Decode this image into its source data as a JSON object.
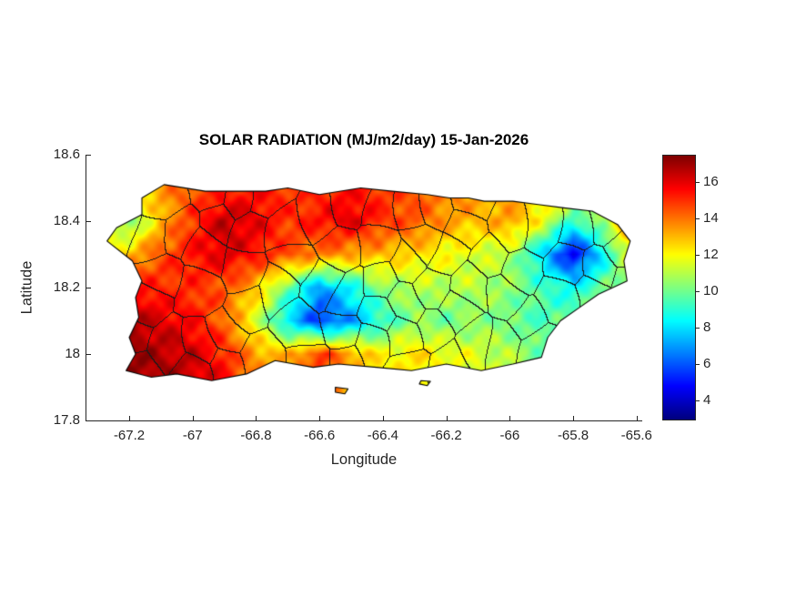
{
  "figure": {
    "title": "SOLAR RADIATION (MJ/m2/day) 15-Jan-2026",
    "xlabel": "Longitude",
    "ylabel": "Latitude"
  },
  "chart_data": {
    "type": "heatmap",
    "title": "SOLAR RADIATION (MJ/m2/day) 15-Jan-2026",
    "subtitle": "",
    "region": "Puerto Rico with municipal boundaries",
    "units": "MJ/m2/day",
    "date": "15-Jan-2026",
    "xlabel": "Longitude",
    "ylabel": "Latitude",
    "xlim": [
      -67.335,
      -65.585
    ],
    "ylim": [
      17.8,
      18.6
    ],
    "xticks": [
      -67.2,
      -67,
      -66.8,
      -66.6,
      -66.4,
      -66.2,
      -66,
      -65.8,
      -65.6
    ],
    "xtick_labels": [
      "-67.2",
      "-67",
      "-66.8",
      "-66.6",
      "-66.4",
      "-66.2",
      "-66",
      "-65.8",
      "-65.6"
    ],
    "yticks": [
      18.6,
      18.4,
      18.2,
      18,
      17.8
    ],
    "ytick_labels": [
      "18.6",
      "18.4",
      "18.2",
      "18",
      "17.8"
    ],
    "colorbar": {
      "clim": [
        3,
        17.5
      ],
      "ticks": [
        4,
        6,
        8,
        10,
        12,
        14,
        16
      ],
      "tick_labels": [
        "4",
        "6",
        "8",
        "10",
        "12",
        "14",
        "16"
      ],
      "colormap": "jet",
      "position": "right"
    },
    "colors": {
      "boundary": "#1a1a1a",
      "coastline": "#000000",
      "axis": "#262626",
      "title": "#000000",
      "background": "#ffffff"
    },
    "boundaries": {
      "visible": true,
      "approx_cells": 72
    },
    "grid": {
      "lon": [
        -67.3,
        -67.2,
        -67.1,
        -67.0,
        -66.9,
        -66.8,
        -66.7,
        -66.6,
        -66.5,
        -66.4,
        -66.3,
        -66.2,
        -66.1,
        -66.0,
        -65.9,
        -65.8,
        -65.7,
        -65.6
      ],
      "lat": [
        17.9,
        18.0,
        18.1,
        18.2,
        18.3,
        18.4,
        18.5
      ],
      "values": [
        [
          17.2,
          17.4,
          17.0,
          16.6,
          15.8,
          14.0,
          13.5,
          14.5,
          13.0,
          12.5,
          12.0,
          12.0,
          11.5,
          11.0,
          10.5,
          11.0,
          11.0,
          11.0
        ],
        [
          17.0,
          17.3,
          16.8,
          16.4,
          15.2,
          13.5,
          13.0,
          15.0,
          13.5,
          12.0,
          12.5,
          12.0,
          11.5,
          11.0,
          10.0,
          10.5,
          11.0,
          11.5
        ],
        [
          16.5,
          16.8,
          16.2,
          15.6,
          14.2,
          11.5,
          8.0,
          5.5,
          7.0,
          9.0,
          10.5,
          10.0,
          10.5,
          10.0,
          9.5,
          10.0,
          11.0,
          11.5
        ],
        [
          15.0,
          15.5,
          15.2,
          15.0,
          14.5,
          13.0,
          10.0,
          7.0,
          8.5,
          10.5,
          11.0,
          11.0,
          11.0,
          10.5,
          9.5,
          8.5,
          10.0,
          10.5
        ],
        [
          12.5,
          13.0,
          14.5,
          15.5,
          16.2,
          15.5,
          14.5,
          14.0,
          13.5,
          13.0,
          12.5,
          12.0,
          11.5,
          11.0,
          8.0,
          4.5,
          8.5,
          13.0
        ],
        [
          11.0,
          10.0,
          13.0,
          15.0,
          16.6,
          16.0,
          15.0,
          15.5,
          16.2,
          15.0,
          14.5,
          13.5,
          13.0,
          13.5,
          12.0,
          9.0,
          11.0,
          15.5
        ],
        [
          12.0,
          12.0,
          13.5,
          14.5,
          15.0,
          15.5,
          15.0,
          15.0,
          15.5,
          15.0,
          14.5,
          14.0,
          13.5,
          13.0,
          13.0,
          12.5,
          12.0,
          13.5
        ]
      ]
    },
    "coastline": [
      [
        -67.27,
        18.34
      ],
      [
        -67.19,
        18.28
      ],
      [
        -67.16,
        18.22
      ],
      [
        -67.18,
        18.17
      ],
      [
        -67.17,
        18.11
      ],
      [
        -67.2,
        18.05
      ],
      [
        -67.18,
        18.0
      ],
      [
        -67.21,
        17.95
      ],
      [
        -67.13,
        17.93
      ],
      [
        -67.05,
        17.94
      ],
      [
        -66.94,
        17.92
      ],
      [
        -66.83,
        17.94
      ],
      [
        -66.74,
        17.98
      ],
      [
        -66.62,
        17.96
      ],
      [
        -66.54,
        17.97
      ],
      [
        -66.42,
        17.96
      ],
      [
        -66.31,
        17.95
      ],
      [
        -66.2,
        17.97
      ],
      [
        -66.09,
        17.95
      ],
      [
        -65.99,
        17.97
      ],
      [
        -65.9,
        17.99
      ],
      [
        -65.88,
        18.05
      ],
      [
        -65.84,
        18.1
      ],
      [
        -65.78,
        18.14
      ],
      [
        -65.72,
        18.18
      ],
      [
        -65.63,
        18.22
      ],
      [
        -65.64,
        18.28
      ],
      [
        -65.62,
        18.34
      ],
      [
        -65.66,
        18.39
      ],
      [
        -65.74,
        18.43
      ],
      [
        -65.83,
        18.44
      ],
      [
        -65.91,
        18.45
      ],
      [
        -65.99,
        18.46
      ],
      [
        -66.08,
        18.46
      ],
      [
        -66.13,
        18.47
      ],
      [
        -66.19,
        18.47
      ],
      [
        -66.26,
        18.48
      ],
      [
        -66.37,
        18.49
      ],
      [
        -66.47,
        18.5
      ],
      [
        -66.6,
        18.48
      ],
      [
        -66.7,
        18.5
      ],
      [
        -66.77,
        18.49
      ],
      [
        -66.9,
        18.49
      ],
      [
        -66.96,
        18.49
      ],
      [
        -67.09,
        18.51
      ],
      [
        -67.16,
        18.47
      ],
      [
        -67.16,
        18.42
      ],
      [
        -67.24,
        18.38
      ]
    ],
    "islets": [
      [
        [
          -66.55,
          17.9
        ],
        [
          -66.51,
          17.895
        ],
        [
          -66.52,
          17.88
        ],
        [
          -66.55,
          17.885
        ]
      ],
      [
        [
          -66.28,
          17.92
        ],
        [
          -66.25,
          17.918
        ],
        [
          -66.26,
          17.905
        ],
        [
          -66.285,
          17.91
        ]
      ]
    ]
  }
}
